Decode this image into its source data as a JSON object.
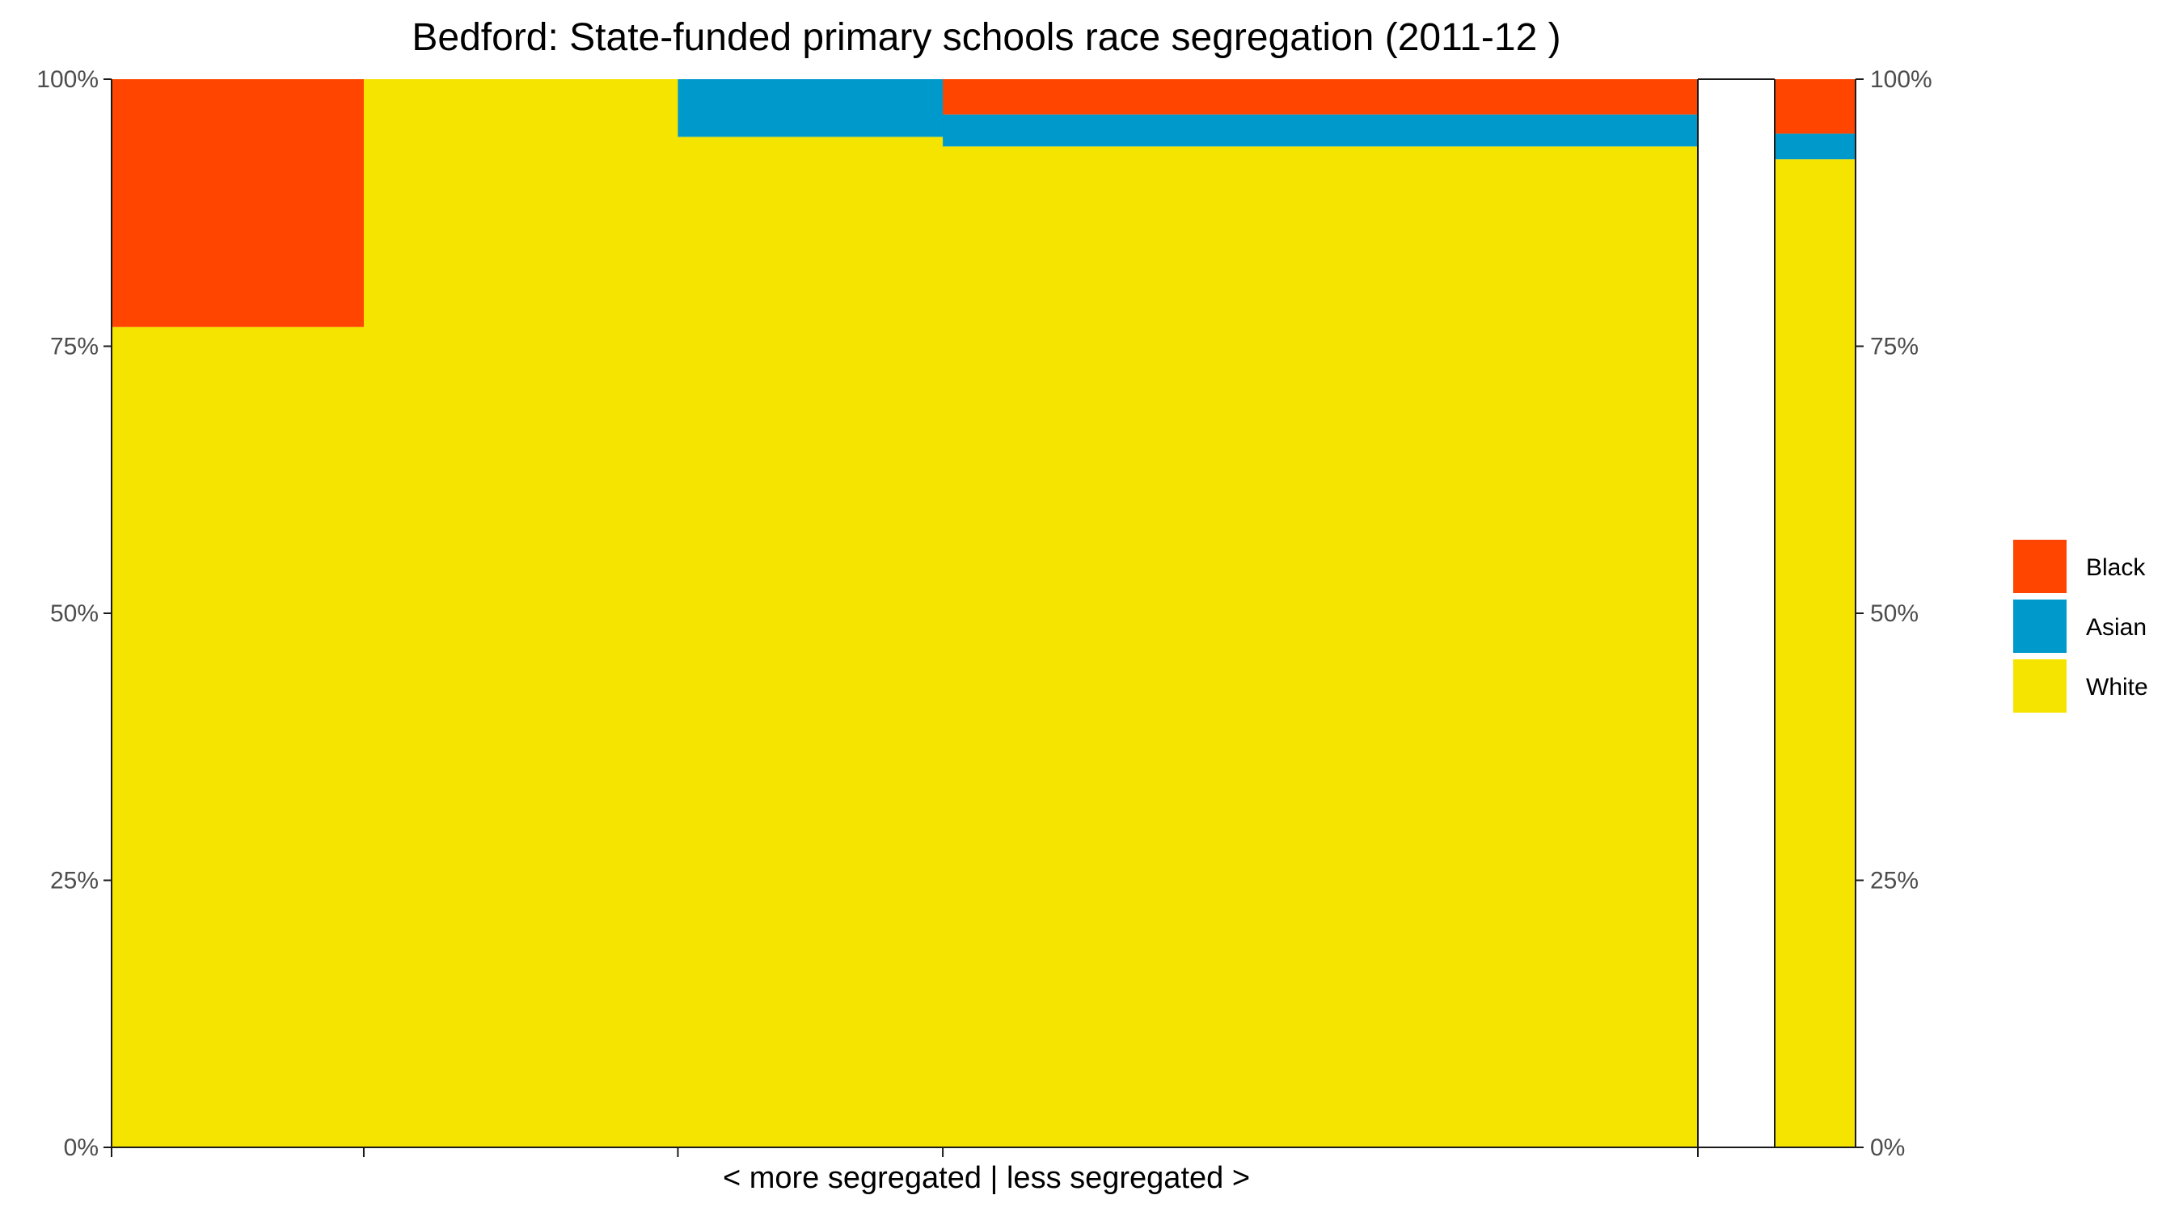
{
  "chart_data": {
    "type": "bar",
    "subtype": "stacked-mosaic",
    "title": "Bedford: State-funded primary schools race segregation (2011-12 )",
    "xlabel": "< more segregated | less segregated >",
    "ylabel": "",
    "ylim": [
      0,
      1
    ],
    "y_ticks": [
      "0%",
      "25%",
      "50%",
      "75%",
      "100%"
    ],
    "y_axis_sides": [
      "left",
      "right"
    ],
    "grid": false,
    "legend_position": "right",
    "colors": {
      "Black": "#FF4500",
      "Asian": "#0099CC",
      "White": "#F5E400"
    },
    "series": [
      {
        "name": "Black"
      },
      {
        "name": "Asian"
      },
      {
        "name": "White"
      }
    ],
    "groups": [
      {
        "width": 0.159,
        "values": {
          "White": 0.768,
          "Asian": 0.0,
          "Black": 0.232
        }
      },
      {
        "width": 0.198,
        "values": {
          "White": 1.0,
          "Asian": 0.0,
          "Black": 0.0
        }
      },
      {
        "width": 0.167,
        "values": {
          "White": 0.946,
          "Asian": 0.054,
          "Black": 0.0
        }
      },
      {
        "width": 0.476,
        "values": {
          "White": 0.937,
          "Asian": 0.03,
          "Black": 0.033
        }
      }
    ],
    "total_bar": {
      "values": {
        "White": 0.925,
        "Asian": 0.024,
        "Black": 0.051
      }
    }
  }
}
